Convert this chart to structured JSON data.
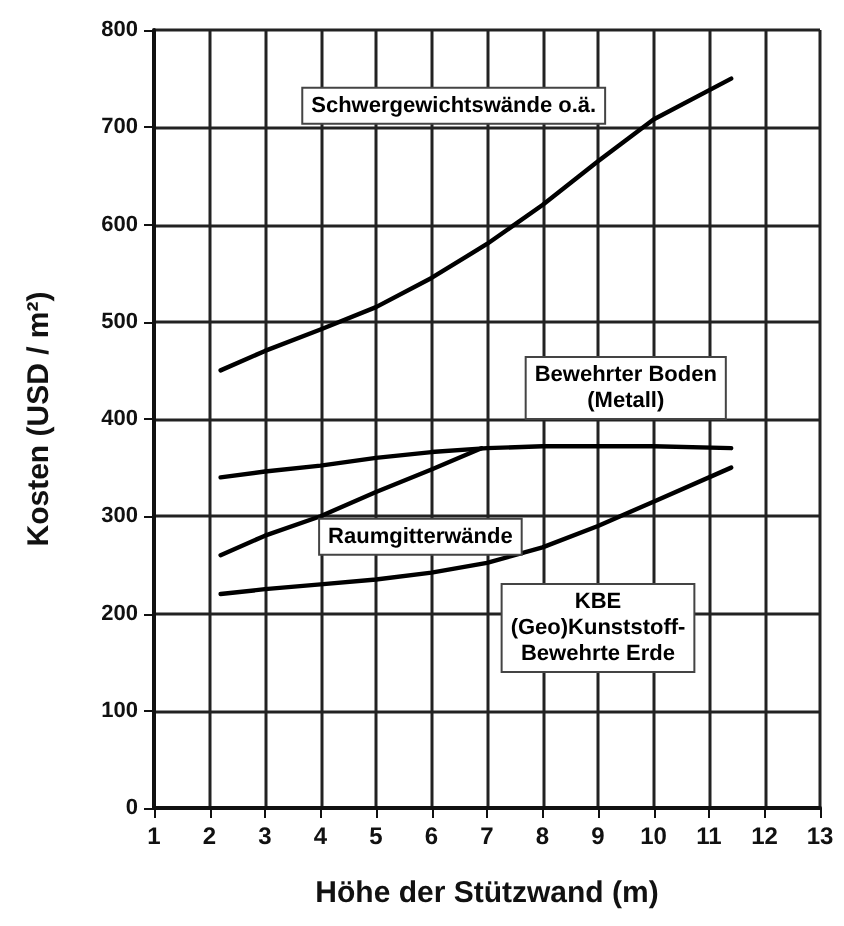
{
  "chart_data": {
    "type": "line",
    "xlabel": "Höhe der Stützwand (m)",
    "ylabel": "Kosten (USD / m²)",
    "xlim": [
      1,
      13
    ],
    "xticks": [
      1,
      2,
      3,
      4,
      5,
      6,
      7,
      8,
      9,
      10,
      11,
      12,
      13
    ],
    "ylim": [
      0,
      800
    ],
    "yticks": [
      0,
      100,
      200,
      300,
      400,
      500,
      600,
      700,
      800
    ],
    "grid": true,
    "legend": false,
    "marker": "none",
    "line_style": "solid",
    "series": [
      {
        "name": "Schwergewichtswände o.ä.",
        "color": "#000000",
        "x": [
          2.2,
          3,
          4,
          5,
          6,
          7,
          8,
          9,
          10,
          11.4
        ],
        "values": [
          450,
          470,
          492,
          515,
          545,
          580,
          620,
          665,
          708,
          750
        ]
      },
      {
        "name": "Bewehrter Boden\n(Metall)",
        "color": "#000000",
        "x": [
          2.2,
          3,
          4,
          5,
          6,
          7,
          8,
          9,
          10,
          11.4
        ],
        "values": [
          340,
          346,
          352,
          360,
          366,
          370,
          372,
          372,
          372,
          370
        ]
      },
      {
        "name": "Raumgitterwände",
        "color": "#000000",
        "x": [
          2.2,
          3,
          4,
          5,
          6,
          6.9
        ],
        "values": [
          260,
          280,
          300,
          325,
          348,
          370
        ]
      },
      {
        "name": "KBE\n(Geo)Kunststoff-\nBewehrte Erde",
        "color": "#000000",
        "x": [
          2.2,
          3,
          4,
          5,
          6,
          7,
          8,
          9,
          10,
          11.4
        ],
        "values": [
          220,
          225,
          230,
          235,
          242,
          252,
          268,
          290,
          315,
          350
        ]
      }
    ]
  }
}
